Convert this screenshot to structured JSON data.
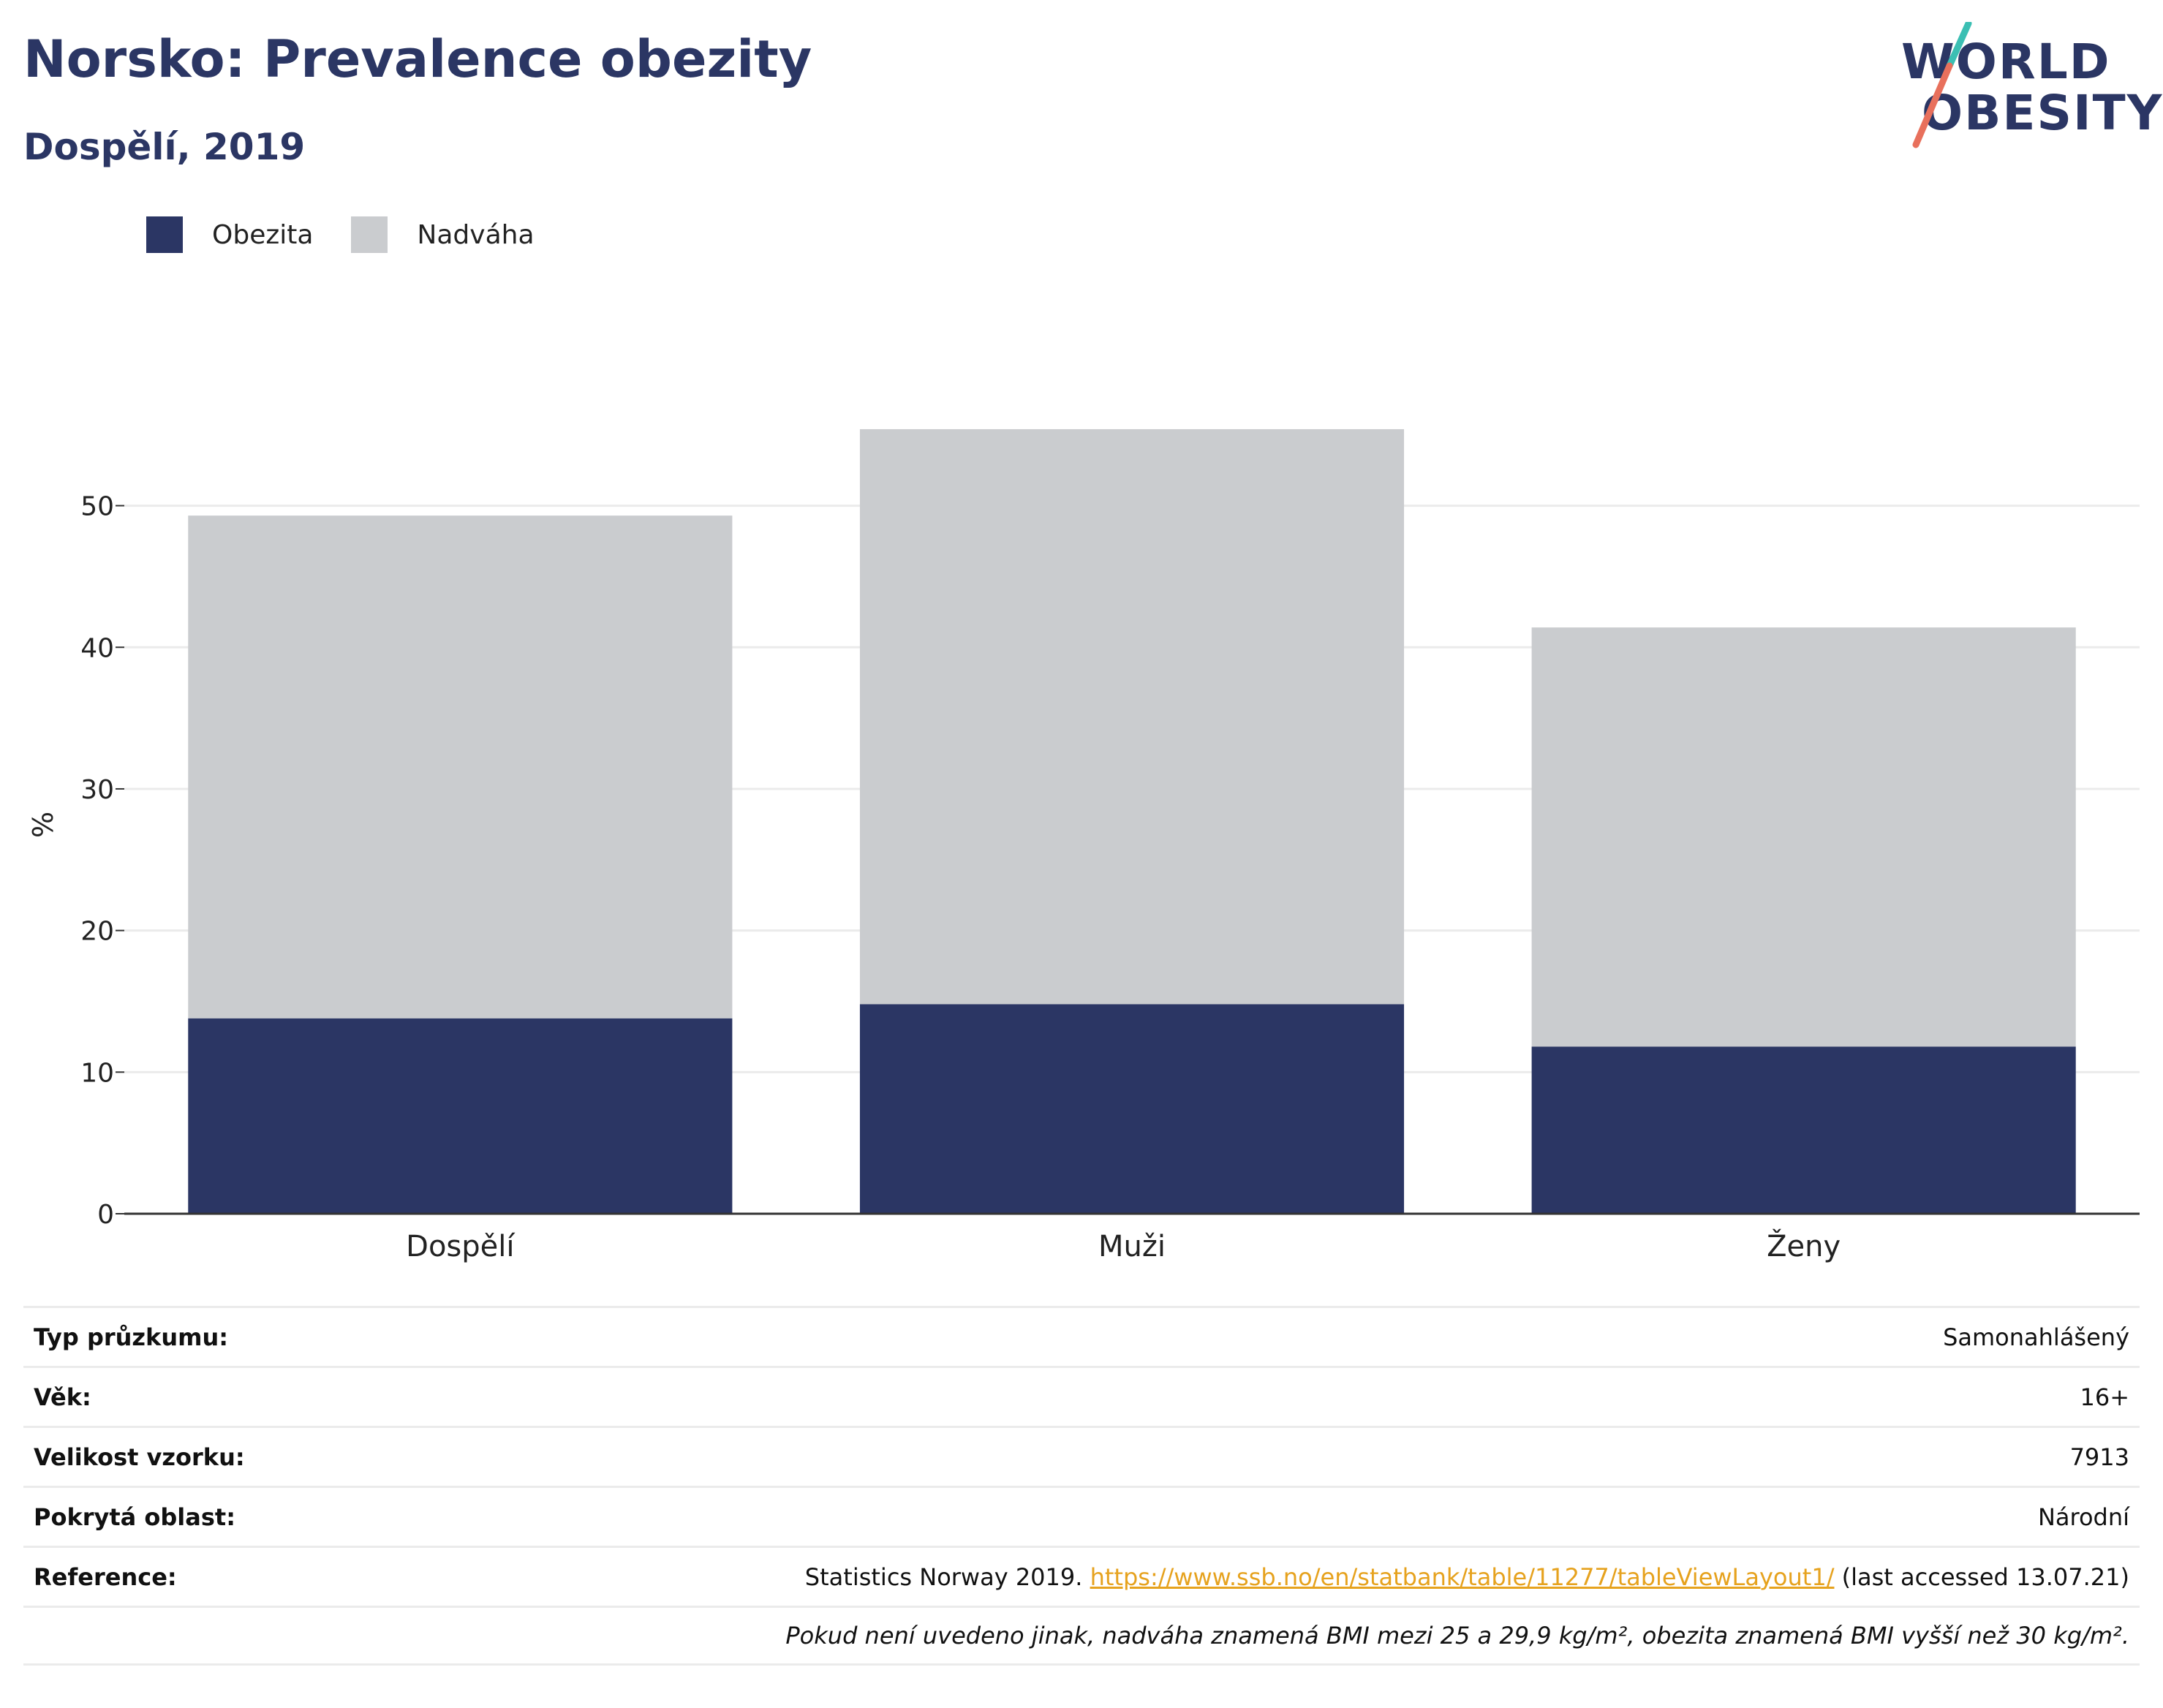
{
  "title": "Norsko: Prevalence obezity",
  "subtitle": "Dospělí, 2019",
  "logo": {
    "line1": "WORLD",
    "line2": "OBESITY",
    "accent_teal": "#3bbfb3",
    "accent_coral": "#e8705c"
  },
  "colors": {
    "obesity": "#2b3664",
    "overweight": "#cacccf",
    "title": "#2b3664",
    "link": "#e6a21e"
  },
  "chart_data": {
    "type": "bar",
    "stacked": true,
    "categories": [
      "Dospělí",
      "Muži",
      "Ženy"
    ],
    "series": [
      {
        "name": "Obezita",
        "values": [
          13.8,
          14.8,
          11.8
        ],
        "color": "#2b3664"
      },
      {
        "name": "Nadváha",
        "values": [
          35.5,
          40.6,
          29.6
        ],
        "color": "#cacccf"
      }
    ],
    "ylabel": "%",
    "ylim": [
      0,
      57
    ],
    "yticks": [
      0,
      10,
      20,
      30,
      40,
      50
    ],
    "grid": true,
    "legend": "top-left"
  },
  "info": {
    "rows": [
      {
        "key": "Typ průzkumu:",
        "value": "Samonahlášený"
      },
      {
        "key": "Věk:",
        "value": "16+"
      },
      {
        "key": "Velikost vzorku:",
        "value": "7913"
      },
      {
        "key": "Pokrytá oblast:",
        "value": "Národní"
      }
    ],
    "reference": {
      "key": "Reference:",
      "prefix": "Statistics Norway 2019. ",
      "link": "https://www.ssb.no/en/statbank/table/11277/tableViewLayout1/",
      "suffix": " (last accessed 13.07.21)"
    },
    "note": "Pokud není uvedeno jinak, nadváha znamená BMI mezi 25 a 29,9 kg/m², obezita znamená BMI vyšší než 30 kg/m²."
  }
}
